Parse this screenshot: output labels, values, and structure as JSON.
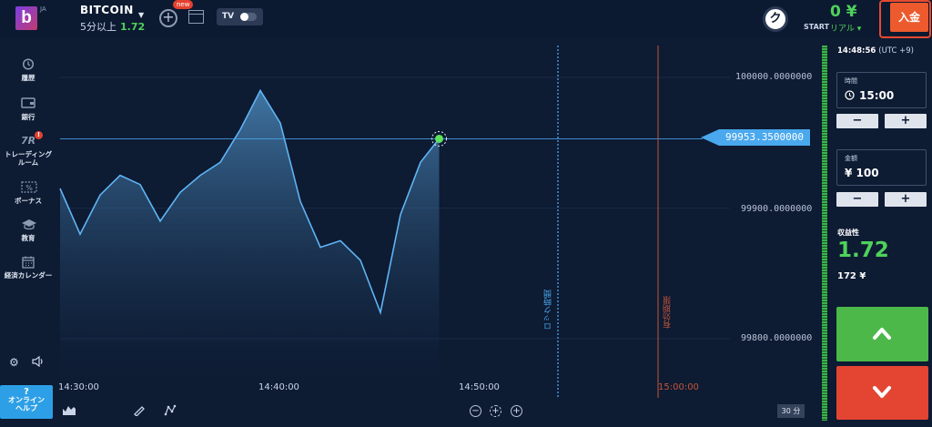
{
  "header": {
    "logo_letter": "b",
    "logo_sub": "JA",
    "asset_name": "BITCOIN",
    "asset_expiry": "5分以上",
    "asset_payout": "1.72",
    "new_badge": "new",
    "tv_label": "TV",
    "timer_glyph": "ク",
    "balance": "0 ¥",
    "start_label": "START",
    "account_type": "リアル ▾",
    "deposit_label": "入金"
  },
  "sidebar": {
    "items": [
      {
        "label": "履歴",
        "icon": "history-icon"
      },
      {
        "label": "銀行",
        "icon": "wallet-icon"
      },
      {
        "label": "トレーディング\nルーム",
        "icon": "trading-room-icon",
        "badge": "!"
      },
      {
        "label": "ボーナス",
        "icon": "bonus-icon"
      },
      {
        "label": "教育",
        "icon": "education-icon"
      },
      {
        "label": "経済カレンダー",
        "icon": "calendar-icon"
      }
    ],
    "help_label_1": "?",
    "help_label_2": "オンライン",
    "help_label_3": "ヘルプ"
  },
  "chart": {
    "current_price": "99953.3500000",
    "price_labels": [
      "100000.0000000",
      "99900.0000000",
      "99800.0000000"
    ],
    "time_labels": [
      "14:30:00",
      "14:40:00",
      "14:50:00",
      "15:00:00"
    ],
    "lock_label": "ロック時間",
    "expiry_label": "有効期限",
    "interval": "30 分"
  },
  "chart_data": {
    "type": "area",
    "xlabel": "",
    "ylabel": "",
    "ylim": [
      99770,
      100050
    ],
    "x": [
      "14:30:00",
      "14:31:00",
      "14:32:00",
      "14:33:00",
      "14:34:00",
      "14:35:00",
      "14:36:00",
      "14:37:00",
      "14:38:00",
      "14:39:00",
      "14:40:00",
      "14:41:00",
      "14:42:00",
      "14:43:00",
      "14:44:00",
      "14:45:00",
      "14:46:00",
      "14:47:00",
      "14:48:00",
      "14:48:56"
    ],
    "series": [
      {
        "values": [
          99915,
          99880,
          99910,
          99925,
          99918,
          99890,
          99912,
          99925,
          99935,
          99960,
          99990,
          99965,
          99905,
          99870,
          99875,
          99860,
          99820,
          99895,
          99935,
          99953
        ]
      }
    ]
  },
  "panel": {
    "clock_time": "14:48:56",
    "clock_tz": "(UTC +9)",
    "time_label": "時間",
    "time_value": "15:00",
    "amount_label": "金額",
    "amount_value": "¥ 100",
    "minus": "−",
    "plus": "+",
    "profit_label": "収益性",
    "profit_value": "1.72",
    "profit_amount": "172 ¥"
  },
  "colors": {
    "background": "#0d1b33",
    "accent_blue": "#4aa8ee",
    "call_green": "#4cb84a",
    "put_red": "#e34532",
    "deposit_orange": "#ec5a2d"
  }
}
